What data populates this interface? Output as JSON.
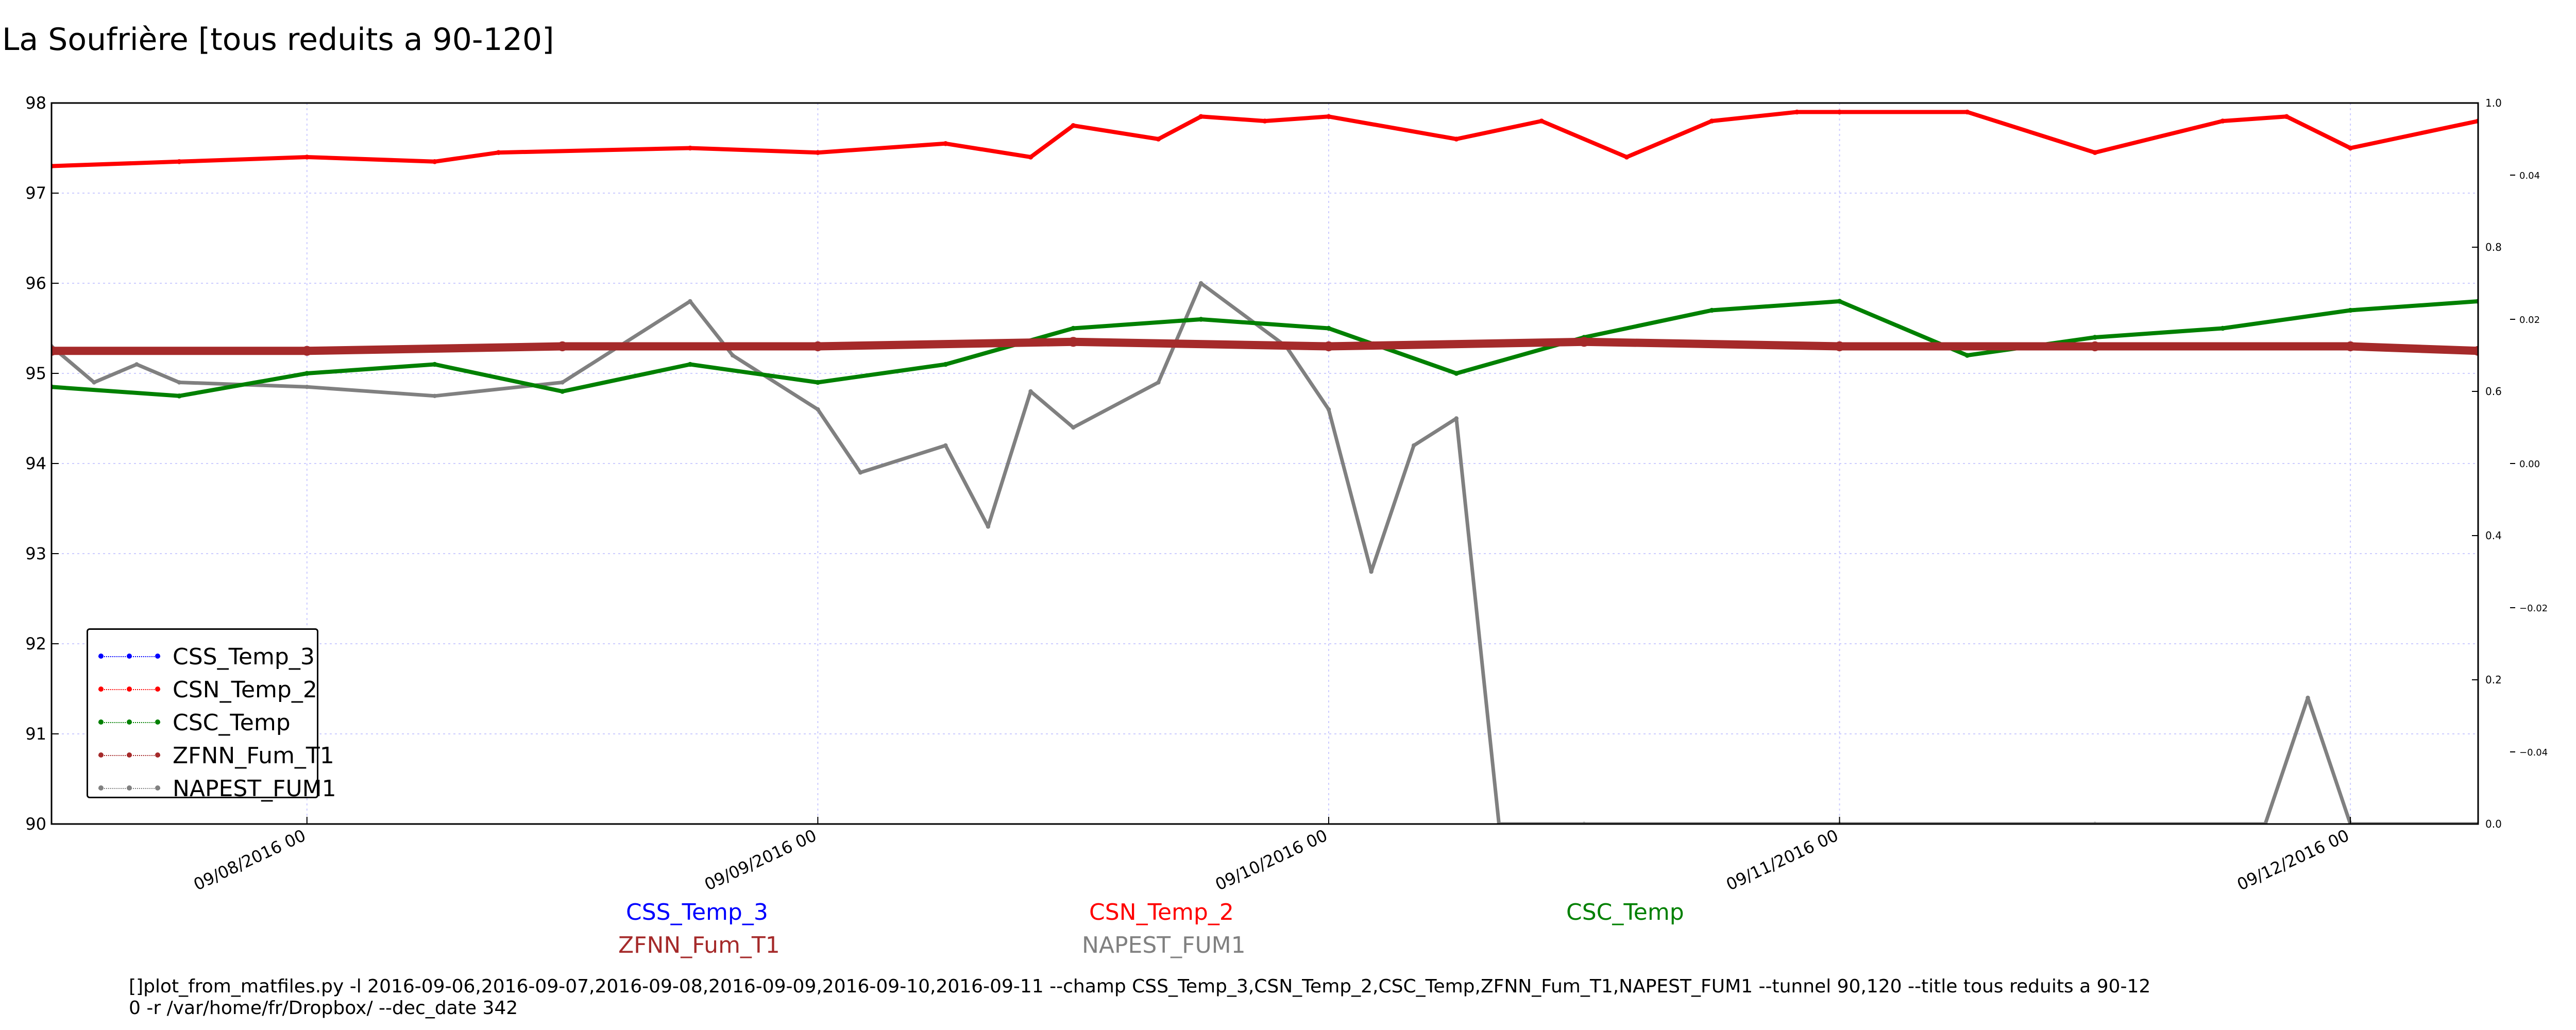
{
  "title": "La Soufrière [tous reduits a 90-120]",
  "chart_data": {
    "type": "line",
    "title": "La Soufrière [tous reduits a 90-120]",
    "x_start": "09/07/2016 12:00",
    "x_end": "09/12/2016 06:00",
    "x_ticks": [
      "09/08/2016 00",
      "09/09/2016 00",
      "09/10/2016 00",
      "09/11/2016 00",
      "09/12/2016 00"
    ],
    "ylim": [
      90,
      98
    ],
    "y_ticks": [
      "90",
      "91",
      "92",
      "93",
      "94",
      "95",
      "96",
      "97",
      "98"
    ],
    "right_axis_outer": [
      "0.0",
      "0.2",
      "0.4",
      "0.6",
      "0.8",
      "1.0"
    ],
    "right_axis_inner": [
      "−0.04",
      "−0.02",
      "0.00",
      "0.02",
      "0.04"
    ],
    "grid": true,
    "legend_position": "lower-left",
    "series": [
      {
        "name": "CSS_Temp_3",
        "color": "#0000ff",
        "x": [],
        "values": []
      },
      {
        "name": "CSN_Temp_2",
        "color": "#ff0000",
        "x": [
          "09/07 12:00",
          "09/07 18:00",
          "09/08 00:00",
          "09/08 06:00",
          "09/08 09:00",
          "09/08 18:00",
          "09/09 00:00",
          "09/09 06:00",
          "09/09 10:00",
          "09/09 12:00",
          "09/09 16:00",
          "09/09 18:00",
          "09/09 21:00",
          "09/10 00:00",
          "09/10 06:00",
          "09/10 10:00",
          "09/10 14:00",
          "09/10 18:00",
          "09/10 22:00",
          "09/11 00:00",
          "09/11 06:00",
          "09/11 12:00",
          "09/11 18:00",
          "09/11 21:00",
          "09/12 00:00",
          "09/12 06:00"
        ],
        "values": [
          97.3,
          97.35,
          97.4,
          97.35,
          97.45,
          97.5,
          97.45,
          97.55,
          97.4,
          97.75,
          97.6,
          97.85,
          97.8,
          97.85,
          97.6,
          97.8,
          97.4,
          97.8,
          97.9,
          97.9,
          97.9,
          97.45,
          97.8,
          97.85,
          97.5,
          97.8
        ]
      },
      {
        "name": "CSC_Temp",
        "color": "#008000",
        "x": [
          "09/07 12:00",
          "09/07 18:00",
          "09/08 00:00",
          "09/08 06:00",
          "09/08 12:00",
          "09/08 18:00",
          "09/09 00:00",
          "09/09 06:00",
          "09/09 12:00",
          "09/09 18:00",
          "09/10 00:00",
          "09/10 06:00",
          "09/10 12:00",
          "09/10 18:00",
          "09/11 00:00",
          "09/11 06:00",
          "09/11 12:00",
          "09/11 18:00",
          "09/12 00:00",
          "09/12 06:00"
        ],
        "values": [
          94.85,
          94.75,
          95.0,
          95.1,
          94.8,
          95.1,
          94.9,
          95.1,
          95.5,
          95.6,
          95.5,
          95.0,
          95.4,
          95.7,
          95.8,
          95.2,
          95.4,
          95.5,
          95.7,
          95.8
        ]
      },
      {
        "name": "ZFNN_Fum_T1",
        "color": "#a52a2a",
        "x": [
          "09/07 12:00",
          "09/08 00:00",
          "09/08 12:00",
          "09/09 00:00",
          "09/09 12:00",
          "09/10 00:00",
          "09/10 12:00",
          "09/11 00:00",
          "09/11 12:00",
          "09/12 00:00",
          "09/12 06:00"
        ],
        "values": [
          95.25,
          95.25,
          95.3,
          95.3,
          95.35,
          95.3,
          95.35,
          95.3,
          95.3,
          95.3,
          95.25
        ]
      },
      {
        "name": "NAPEST_FUM1",
        "color": "#808080",
        "x": [
          "09/07 12:00",
          "09/07 14:00",
          "09/07 16:00",
          "09/07 18:00",
          "09/08 00:00",
          "09/08 06:00",
          "09/08 12:00",
          "09/08 18:00",
          "09/08 20:00",
          "09/09 00:00",
          "09/09 02:00",
          "09/09 06:00",
          "09/09 08:00",
          "09/09 10:00",
          "09/09 12:00",
          "09/09 16:00",
          "09/09 18:00",
          "09/09 22:00",
          "09/10 00:00",
          "09/10 02:00",
          "09/10 04:00",
          "09/10 06:00",
          "09/10 08:00",
          "09/10 12:00",
          "09/11 00:00",
          "09/11 12:00",
          "09/11 20:00",
          "09/11 22:00",
          "09/12 00:00",
          "09/12 06:00"
        ],
        "values": [
          95.3,
          94.9,
          95.1,
          94.9,
          94.85,
          94.75,
          94.9,
          95.8,
          95.2,
          94.6,
          93.9,
          94.2,
          93.3,
          94.8,
          94.4,
          94.9,
          96.0,
          95.3,
          94.6,
          92.8,
          94.2,
          94.5,
          90.0,
          90.0,
          90.0,
          90.0,
          90.0,
          91.4,
          90.0,
          90.0
        ]
      }
    ]
  },
  "legend_labels": [
    "CSS_Temp_3",
    "CSN_Temp_2",
    "CSC_Temp",
    "ZFNN_Fum_T1",
    "NAPEST_FUM1"
  ],
  "series_labels": [
    "CSS_Temp_3",
    "CSN_Temp_2",
    "CSC_Temp",
    "ZFNN_Fum_T1",
    "NAPEST_FUM1"
  ],
  "command_line_1": "[]plot_from_matfiles.py -l 2016-09-06,2016-09-07,2016-09-08,2016-09-09,2016-09-10,2016-09-11 --champ CSS_Temp_3,CSN_Temp_2,CSC_Temp,ZFNN_Fum_T1,NAPEST_FUM1 --tunnel 90,120 --title tous reduits a 90-12",
  "command_line_2": "0 -r /var/home/fr/Dropbox/ --dec_date 342"
}
